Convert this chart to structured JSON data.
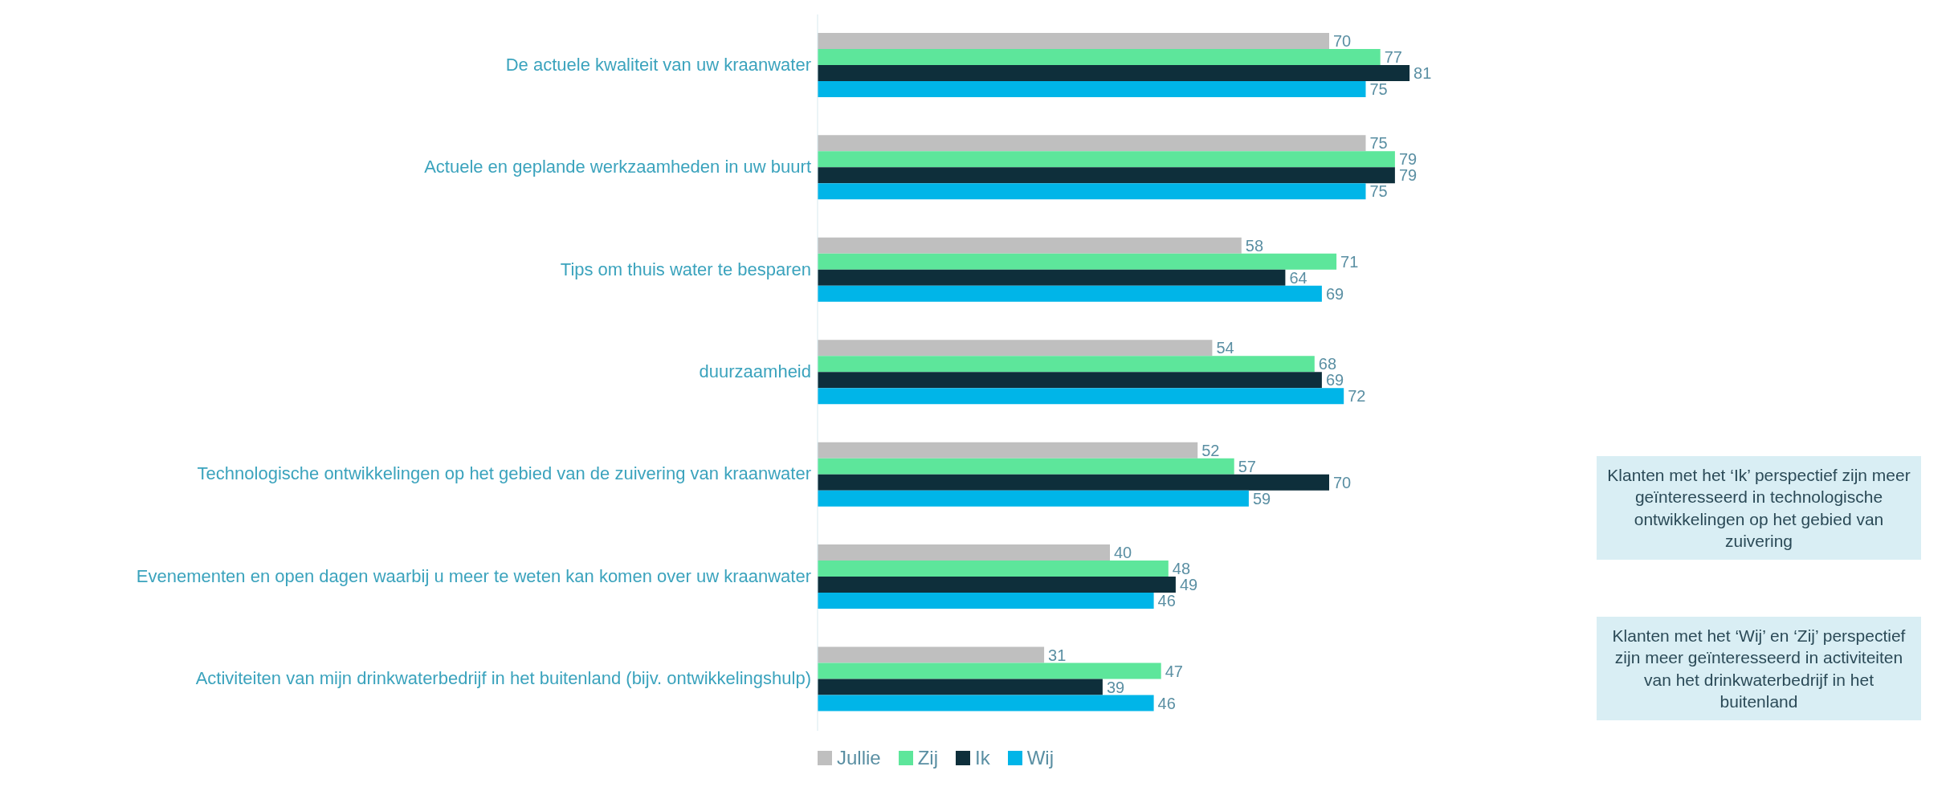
{
  "chart_data": {
    "type": "bar",
    "orientation": "horizontal",
    "categories": [
      "De actuele kwaliteit van uw kraanwater",
      "Actuele en geplande werkzaamheden in uw buurt",
      "Tips om thuis water te besparen",
      "duurzaamheid",
      "Technologische ontwikkelingen op het gebied van de zuivering van kraanwater",
      "Evenementen en open dagen waarbij u meer te weten kan komen over uw kraanwater",
      "Activiteiten van mijn drinkwaterbedrijf in het buitenland (bijv. ontwikkelingshulp)"
    ],
    "series": [
      {
        "name": "Jullie",
        "color": "#bfbfbf",
        "values": [
          70,
          75,
          58,
          54,
          52,
          40,
          31
        ]
      },
      {
        "name": "Zij",
        "color": "#5de69b",
        "values": [
          77,
          79,
          71,
          68,
          57,
          48,
          47
        ]
      },
      {
        "name": "Ik",
        "color": "#0e2f3b",
        "values": [
          81,
          79,
          64,
          69,
          70,
          49,
          39
        ]
      },
      {
        "name": "Wij",
        "color": "#00b5e8",
        "values": [
          75,
          75,
          69,
          72,
          59,
          46,
          46
        ]
      }
    ],
    "tick_labels": "y",
    "data_labels": true,
    "legend": "bottom",
    "annotations": [
      "Klanten met het ‘Ik’ perspectief zijn meer geïnteresseerd in technologische ontwikkelingen op het gebied van zuivering",
      "Klanten met het ‘Wij’ en ‘Zij’ perspectief zijn meer geïnteresseerd in activiteiten van het drinkwaterbedrijf in het buitenland"
    ]
  }
}
